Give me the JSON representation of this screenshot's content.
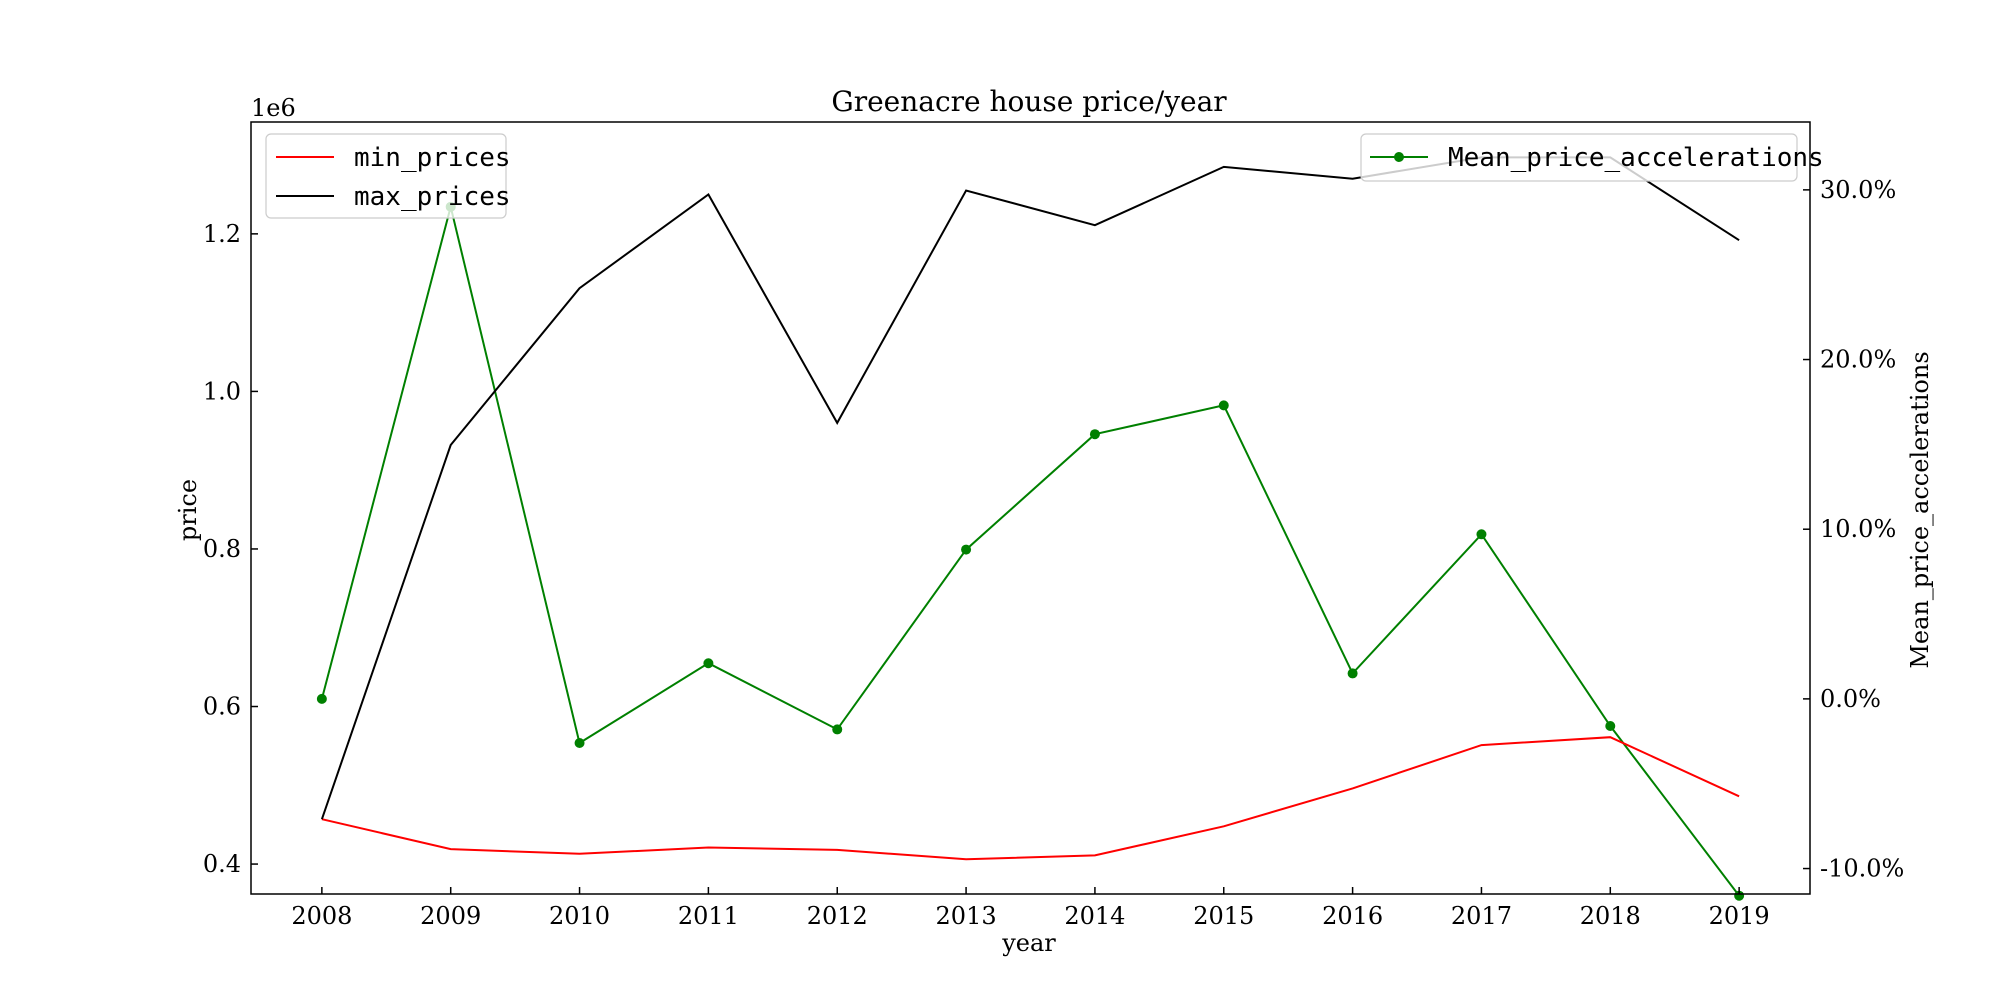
{
  "chart_data": {
    "type": "line",
    "title": "Greenacre house price/year",
    "xlabel": "year",
    "ylabel": "price",
    "y2label": "Mean_price_accelerations",
    "y_offset_text": "1e6",
    "x": [
      2008,
      2009,
      2010,
      2011,
      2012,
      2013,
      2014,
      2015,
      2016,
      2017,
      2018,
      2019
    ],
    "xlim": [
      2007.45,
      2019.55
    ],
    "ylim": [
      0.362,
      1.342
    ],
    "y2lim": [
      -11.5,
      34
    ],
    "yticks": [
      0.4,
      0.6,
      0.8,
      1.0,
      1.2
    ],
    "ytick_labels": [
      "0.4",
      "0.6",
      "0.8",
      "1.0",
      "1.2"
    ],
    "y2ticks": [
      -10,
      0,
      10,
      20,
      30
    ],
    "y2tick_labels": [
      "-10.0%",
      "0.0%",
      "10.0%",
      "20.0%",
      "30.0%"
    ],
    "xtick_labels": [
      "2008",
      "2009",
      "2010",
      "2011",
      "2012",
      "2013",
      "2014",
      "2015",
      "2016",
      "2017",
      "2018",
      "2019"
    ],
    "grid": false,
    "series": [
      {
        "name": "min_prices",
        "axis": "left",
        "color": "#ff0000",
        "marker": false,
        "values": [
          0.457,
          0.419,
          0.413,
          0.421,
          0.418,
          0.406,
          0.411,
          0.448,
          0.496,
          0.551,
          0.561,
          0.486
        ]
      },
      {
        "name": "max_prices",
        "axis": "left",
        "color": "#000000",
        "marker": false,
        "values": [
          0.457,
          0.932,
          1.131,
          1.25,
          0.96,
          1.255,
          1.211,
          1.285,
          1.27,
          1.297,
          1.297,
          1.192
        ]
      },
      {
        "name": "Mean_price_accelerations",
        "axis": "right",
        "color": "#008000",
        "marker": true,
        "values": [
          0.0,
          29.0,
          -2.6,
          2.1,
          -1.8,
          8.8,
          15.6,
          17.3,
          1.5,
          9.7,
          -1.6,
          -11.6
        ]
      }
    ],
    "legend_left_placement": "upper left",
    "legend_right_placement": "upper right"
  }
}
